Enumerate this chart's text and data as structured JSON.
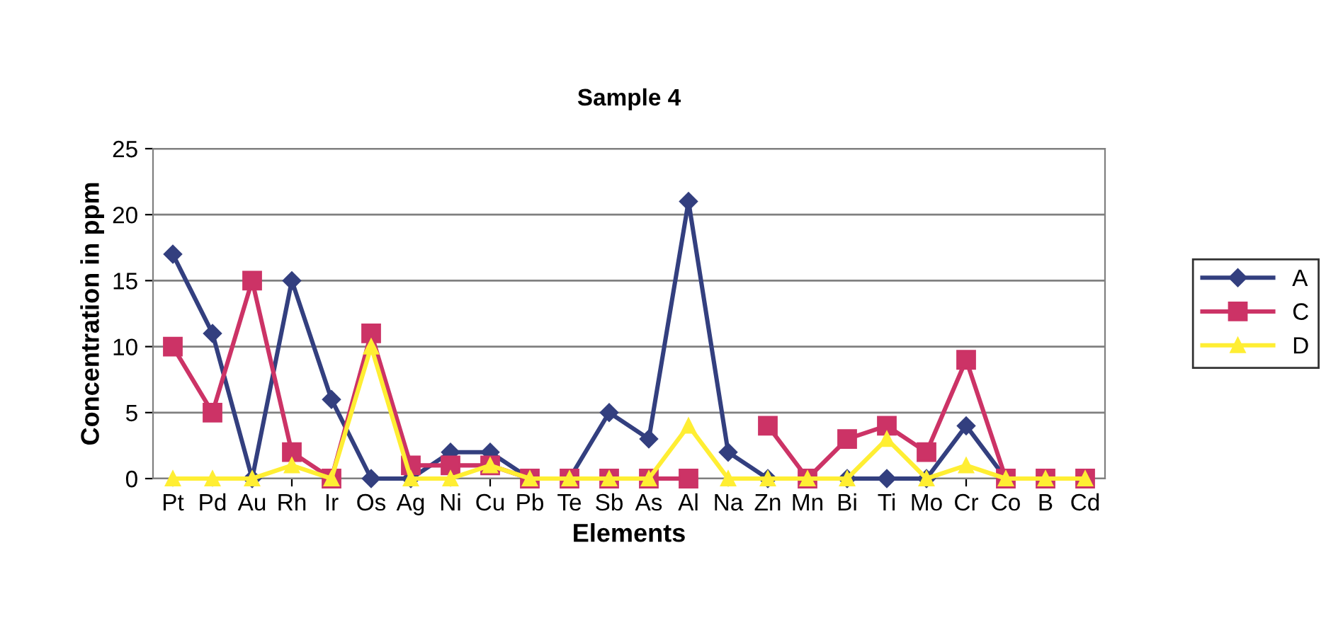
{
  "chart_data": {
    "type": "line",
    "title": "Sample 4",
    "xlabel": "Elements",
    "ylabel": "Concentration in ppm",
    "categories": [
      "Pt",
      "Pd",
      "Au",
      "Rh",
      "Ir",
      "Os",
      "Ag",
      "Ni",
      "Cu",
      "Pb",
      "Te",
      "Sb",
      "As",
      "Al",
      "Na",
      "Zn",
      "Mn",
      "Bi",
      "Ti",
      "Mo",
      "Cr",
      "Co",
      "B",
      "Cd"
    ],
    "series": [
      {
        "name": "A",
        "color": "#333f7f",
        "marker": "diamond",
        "values": [
          17,
          11,
          0,
          15,
          6,
          0,
          0,
          2,
          2,
          0,
          0,
          5,
          3,
          21,
          2,
          0,
          0,
          0,
          0,
          0,
          4,
          0,
          null,
          null
        ]
      },
      {
        "name": "C",
        "color": "#cc3366",
        "marker": "square",
        "values": [
          10,
          5,
          15,
          2,
          0,
          11,
          1,
          1,
          1,
          0,
          0,
          0,
          0,
          0,
          null,
          4,
          0,
          3,
          4,
          2,
          9,
          0,
          0,
          0
        ]
      },
      {
        "name": "D",
        "color": "#ffee33",
        "marker": "triangle",
        "values": [
          0,
          0,
          0,
          1,
          0,
          10,
          0,
          0,
          1,
          0,
          0,
          0,
          0,
          4,
          0,
          0,
          0,
          0,
          3,
          0,
          1,
          0,
          0,
          0
        ]
      }
    ],
    "ylim": [
      0,
      25
    ],
    "yticks": [
      0,
      5,
      10,
      15,
      20,
      25
    ],
    "grid": "y",
    "legend": "right",
    "line_style": "solid"
  }
}
